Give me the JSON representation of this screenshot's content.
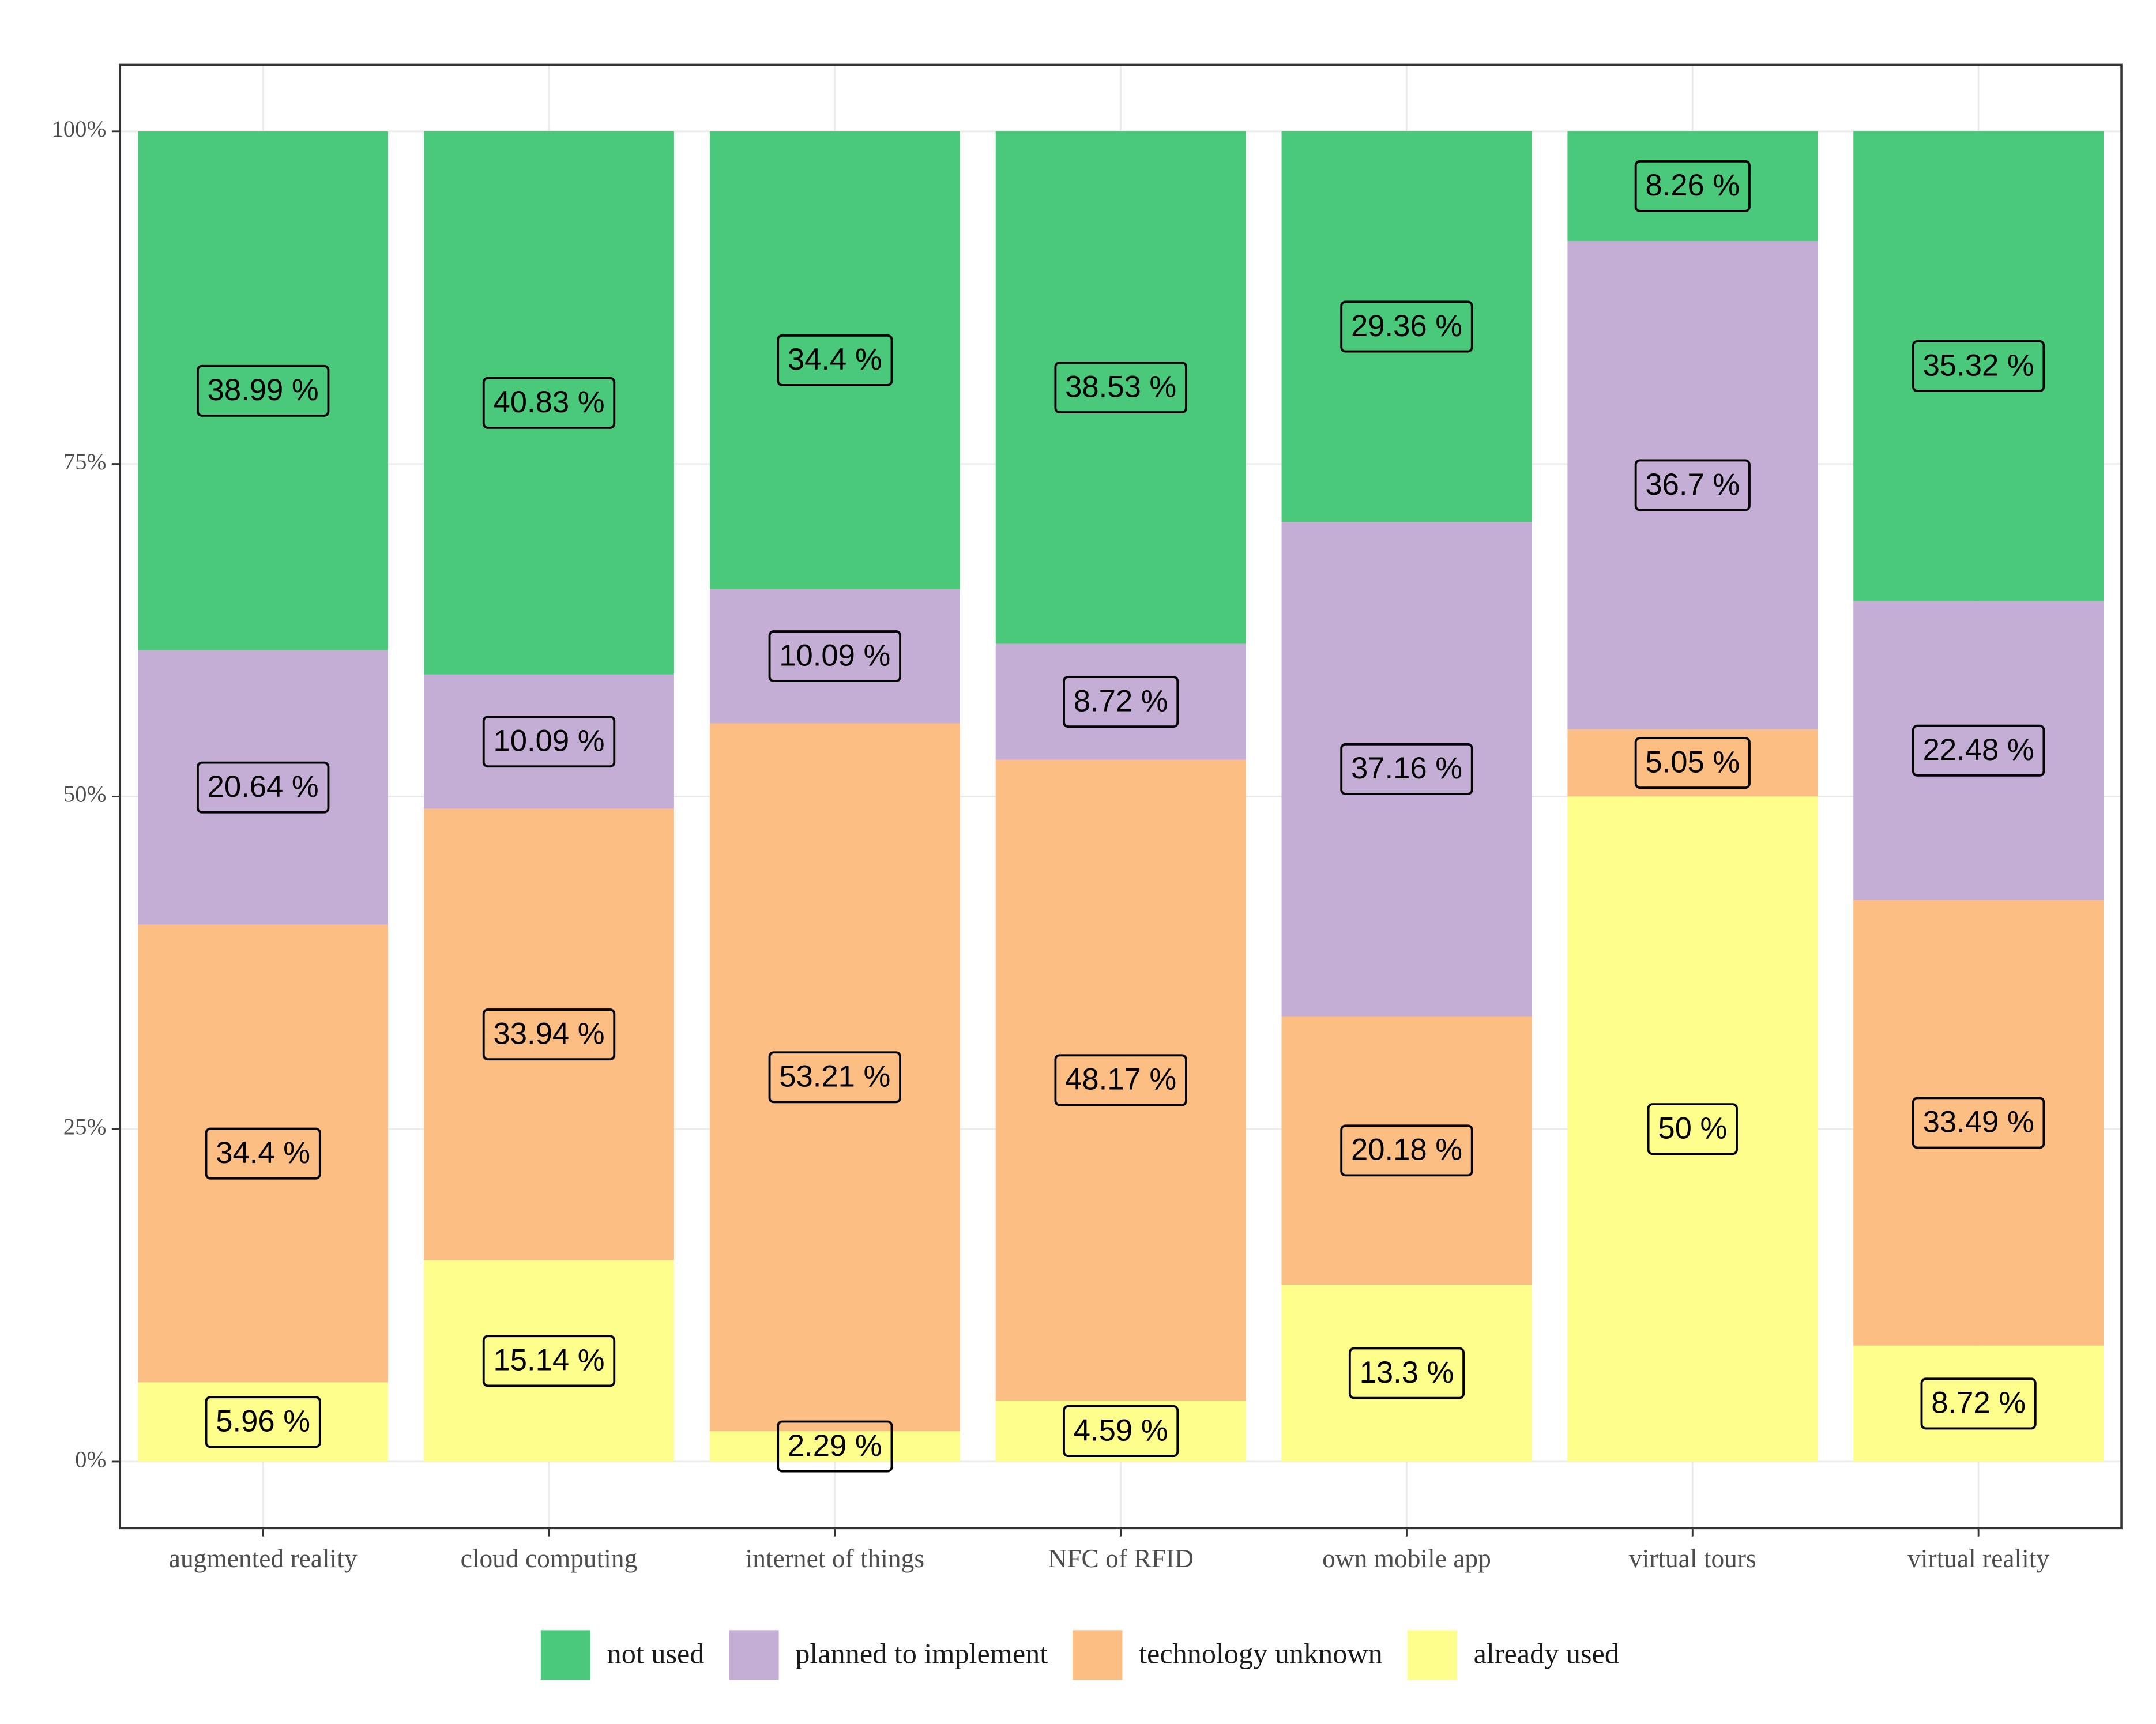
{
  "chart_data": {
    "type": "stacked_bar",
    "categories": [
      "augmented reality",
      "cloud computing",
      "internet of things",
      "NFC of RFID",
      "own mobile app",
      "virtual tours",
      "virtual reality"
    ],
    "series": [
      {
        "name": "not used",
        "color": "#4ac97a",
        "values": [
          38.99,
          40.83,
          34.4,
          38.53,
          29.36,
          8.26,
          35.32
        ],
        "value_labels": [
          "38.99 %",
          "40.83 %",
          "34.4 %",
          "38.53 %",
          "29.36 %",
          "8.26 %",
          "35.32 %"
        ]
      },
      {
        "name": "planned to implement",
        "color": "#c5aed5",
        "values": [
          20.64,
          10.09,
          10.09,
          8.72,
          37.16,
          36.7,
          22.48
        ],
        "value_labels": [
          "20.64 %",
          "10.09 %",
          "10.09 %",
          "8.72 %",
          "37.16 %",
          "36.7 %",
          "22.48 %"
        ]
      },
      {
        "name": "technology unknown",
        "color": "#fdbe84",
        "values": [
          34.4,
          33.94,
          53.21,
          48.17,
          20.18,
          5.05,
          33.49
        ],
        "value_labels": [
          "34.4 %",
          "33.94 %",
          "53.21 %",
          "48.17 %",
          "20.18 %",
          "5.05 %",
          "33.49 %"
        ]
      },
      {
        "name": "already used",
        "color": "#fefe8c",
        "values": [
          5.96,
          15.14,
          2.29,
          4.59,
          13.3,
          50,
          8.72
        ],
        "value_labels": [
          "5.96 %",
          "15.14 %",
          "2.29 %",
          "4.59 %",
          "13.3 %",
          "50 %",
          "8.72 %"
        ]
      }
    ],
    "ylim": [
      -5,
      105
    ],
    "yticks": [
      {
        "value": 0,
        "label": "0%"
      },
      {
        "value": 25,
        "label": "25%"
      },
      {
        "value": 50,
        "label": "50%"
      },
      {
        "value": 75,
        "label": "75%"
      },
      {
        "value": 100,
        "label": "100%"
      }
    ],
    "grid": true,
    "legend": "bottom"
  }
}
